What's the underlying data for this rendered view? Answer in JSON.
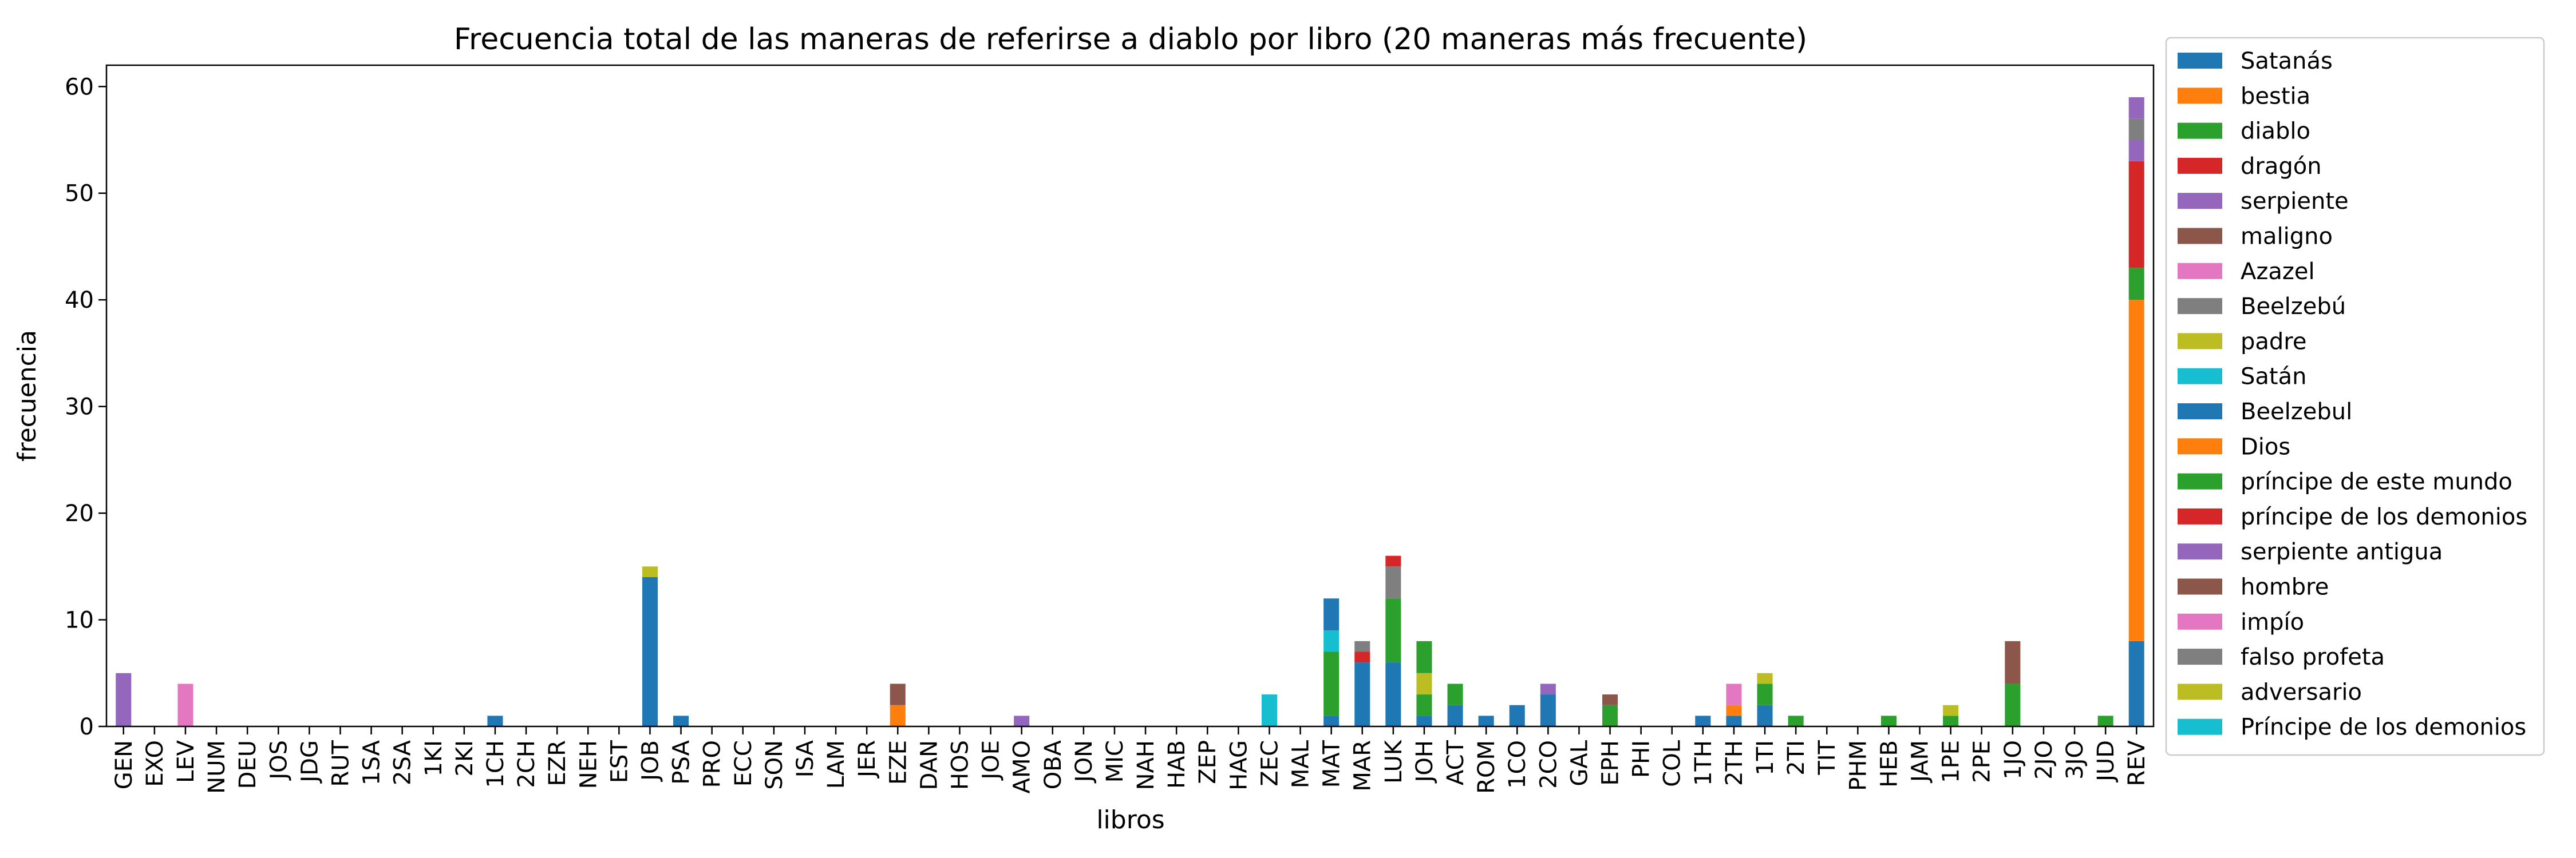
{
  "chart_data": {
    "type": "bar",
    "stacked": true,
    "title": "Frecuencia total de las maneras de referirse a diablo por libro (20 maneras más frecuente)",
    "xlabel": "libros",
    "ylabel": "frecuencia",
    "ylim": [
      0,
      62
    ],
    "yticks": [
      0,
      10,
      20,
      30,
      40,
      50,
      60
    ],
    "grid": false,
    "legend_position": "right",
    "categories": [
      "GEN",
      "EXO",
      "LEV",
      "NUM",
      "DEU",
      "JOS",
      "JDG",
      "RUT",
      "1SA",
      "2SA",
      "1KI",
      "2KI",
      "1CH",
      "2CH",
      "EZR",
      "NEH",
      "EST",
      "JOB",
      "PSA",
      "PRO",
      "ECC",
      "SON",
      "ISA",
      "LAM",
      "JER",
      "EZE",
      "DAN",
      "HOS",
      "JOE",
      "AMO",
      "OBA",
      "JON",
      "MIC",
      "NAH",
      "HAB",
      "ZEP",
      "HAG",
      "ZEC",
      "MAL",
      "MAT",
      "MAR",
      "LUK",
      "JOH",
      "ACT",
      "ROM",
      "1CO",
      "2CO",
      "GAL",
      "EPH",
      "PHI",
      "COL",
      "1TH",
      "2TH",
      "1TI",
      "2TI",
      "TIT",
      "PHM",
      "HEB",
      "JAM",
      "1PE",
      "2PE",
      "1JO",
      "2JO",
      "3JO",
      "JUD",
      "REV"
    ],
    "series": [
      {
        "name": "Satanás",
        "color": "#1f77b4",
        "values": {
          "1CH": 1,
          "JOB": 14,
          "PSA": 1,
          "MAT": 1,
          "MAR": 6,
          "LUK": 6,
          "JOH": 1,
          "ACT": 2,
          "ROM": 1,
          "1CO": 2,
          "2CO": 3,
          "1TH": 1,
          "2TH": 1,
          "1TI": 2,
          "REV": 8
        }
      },
      {
        "name": "bestia",
        "color": "#ff7f0e",
        "values": {
          "EZE": 2,
          "2TH": 1,
          "REV": 32
        }
      },
      {
        "name": "diablo",
        "color": "#2ca02c",
        "values": {
          "MAT": 6,
          "LUK": 6,
          "JOH": 2,
          "ACT": 2,
          "EPH": 2,
          "1TI": 2,
          "2TI": 1,
          "HEB": 1,
          "1PE": 1,
          "1JO": 4,
          "JUD": 1,
          "REV": 3
        }
      },
      {
        "name": "dragón",
        "color": "#d62728",
        "values": {
          "MAR": 1,
          "REV": 10
        }
      },
      {
        "name": "serpiente",
        "color": "#9467bd",
        "values": {
          "GEN": 5,
          "AMO": 1,
          "2CO": 1,
          "REV": 2
        }
      },
      {
        "name": "maligno",
        "color": "#8c564b",
        "values": {
          "EZE": 2,
          "EPH": 1,
          "1JO": 4
        }
      },
      {
        "name": "Azazel",
        "color": "#e377c2",
        "values": {
          "LEV": 4,
          "2TH": 2
        }
      },
      {
        "name": "Beelzebú",
        "color": "#7f7f7f",
        "values": {
          "MAR": 1,
          "LUK": 3,
          "REV": 2
        }
      },
      {
        "name": "padre",
        "color": "#bcbd22",
        "values": {
          "JOB": 1,
          "JOH": 2,
          "1TI": 1,
          "1PE": 1
        }
      },
      {
        "name": "Satán",
        "color": "#17becf",
        "values": {
          "ZEC": 3,
          "MAT": 2
        }
      },
      {
        "name": "Beelzebul",
        "color": "#1f77b4",
        "values": {
          "MAT": 3
        }
      },
      {
        "name": "Dios",
        "color": "#ff7f0e",
        "values": {}
      },
      {
        "name": "príncipe de este mundo",
        "color": "#2ca02c",
        "values": {
          "JOH": 3
        }
      },
      {
        "name": "príncipe de los demonios",
        "color": "#d62728",
        "values": {
          "LUK": 1
        }
      },
      {
        "name": "serpiente antigua",
        "color": "#9467bd",
        "values": {
          "REV": 2
        }
      },
      {
        "name": "hombre",
        "color": "#8c564b",
        "values": {}
      },
      {
        "name": "impío",
        "color": "#e377c2",
        "values": {}
      },
      {
        "name": "falso profeta",
        "color": "#7f7f7f",
        "values": {}
      },
      {
        "name": "adversario",
        "color": "#bcbd22",
        "values": {}
      },
      {
        "name": "Príncipe de los demonios",
        "color": "#17becf",
        "values": {}
      }
    ]
  }
}
